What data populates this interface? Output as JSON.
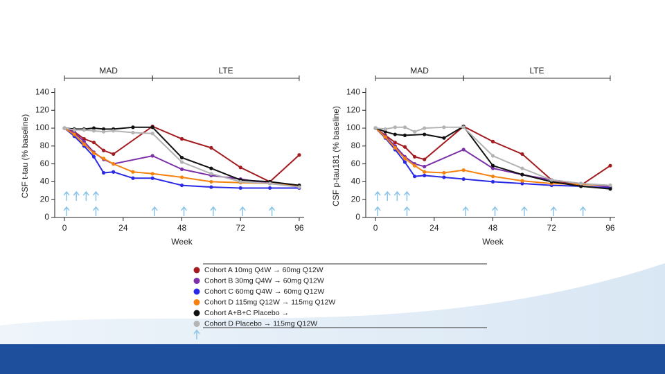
{
  "chart_data": [
    {
      "type": "line",
      "xlabel": "Week",
      "ylabel": "CSF t-tau (% baseline)",
      "xlim": [
        -4,
        98
      ],
      "ylim": [
        0,
        145
      ],
      "xticks": [
        0,
        24,
        48,
        72,
        96
      ],
      "yticks": [
        0,
        20,
        40,
        60,
        80,
        100,
        120,
        140
      ],
      "phases": [
        {
          "label": "MAD",
          "start": 0,
          "end": 36
        },
        {
          "label": "LTE",
          "start": 36,
          "end": 96
        }
      ],
      "series": [
        {
          "name": "Cohort A 10mg Q4W → 60mg Q12W",
          "color": "#a31a1f",
          "x": [
            0,
            4,
            8,
            12,
            16,
            20,
            36,
            48,
            60,
            72,
            84,
            96
          ],
          "values": [
            100,
            96,
            88,
            84,
            75,
            71,
            102,
            88,
            78,
            56,
            40,
            70
          ]
        },
        {
          "name": "Cohort B 30mg Q4W → 60mg Q12W",
          "color": "#7b2fa8",
          "x": [
            0,
            4,
            8,
            12,
            16,
            20,
            36,
            48,
            60,
            72,
            84,
            96
          ],
          "values": [
            100,
            95,
            85,
            73,
            65,
            60,
            69,
            54,
            47,
            43,
            38,
            35
          ]
        },
        {
          "name": "Cohort C 60mg Q4W → 60mg Q12W",
          "color": "#2a2ae6",
          "x": [
            0,
            4,
            8,
            12,
            16,
            20,
            28,
            36,
            48,
            60,
            72,
            84,
            96
          ],
          "values": [
            100,
            91,
            80,
            68,
            50,
            51,
            44,
            44,
            36,
            34,
            33,
            33,
            33
          ]
        },
        {
          "name": "Cohort D 115mg Q12W → 115mg Q12W",
          "color": "#f5820f",
          "x": [
            0,
            4,
            8,
            12,
            16,
            20,
            28,
            36,
            48,
            60,
            72,
            84,
            96
          ],
          "values": [
            100,
            93,
            82,
            72,
            66,
            60,
            51,
            49,
            45,
            40,
            39,
            38,
            35
          ]
        },
        {
          "name": "Cohort A+B+C Placebo →",
          "color": "#111111",
          "x": [
            0,
            4,
            8,
            12,
            16,
            20,
            28,
            36,
            48,
            60,
            72,
            84,
            96
          ],
          "values": [
            100,
            99,
            99,
            100,
            99,
            99,
            101,
            101,
            67,
            55,
            42,
            40,
            36
          ]
        },
        {
          "name": "Cohort D Placebo → 115mg Q12W",
          "color": "#b3b3b3",
          "x": [
            0,
            4,
            8,
            12,
            16,
            20,
            28,
            36,
            48,
            60,
            72,
            84,
            96
          ],
          "values": [
            100,
            98,
            98,
            97,
            96,
            97,
            95,
            94,
            62,
            49,
            40,
            38,
            34
          ]
        }
      ]
    },
    {
      "type": "line",
      "xlabel": "Week",
      "ylabel": "CSF p-tau181 (% baseline)",
      "xlim": [
        -4,
        98
      ],
      "ylim": [
        0,
        145
      ],
      "xticks": [
        0,
        24,
        48,
        72,
        96
      ],
      "yticks": [
        0,
        20,
        40,
        60,
        80,
        100,
        120,
        140
      ],
      "phases": [
        {
          "label": "MAD",
          "start": 0,
          "end": 36
        },
        {
          "label": "LTE",
          "start": 36,
          "end": 96
        }
      ],
      "series": [
        {
          "color": "#a31a1f",
          "x": [
            0,
            4,
            8,
            12,
            16,
            20,
            36,
            48,
            60,
            72,
            84,
            96
          ],
          "values": [
            100,
            92,
            84,
            79,
            68,
            65,
            102,
            85,
            71,
            42,
            36,
            58
          ]
        },
        {
          "color": "#7b2fa8",
          "x": [
            0,
            4,
            8,
            12,
            16,
            20,
            36,
            48,
            60,
            72,
            84,
            96
          ],
          "values": [
            100,
            91,
            80,
            68,
            60,
            57,
            76,
            55,
            48,
            42,
            38,
            34
          ]
        },
        {
          "color": "#2a2ae6",
          "x": [
            0,
            4,
            8,
            12,
            16,
            20,
            28,
            36,
            48,
            60,
            72,
            84,
            96
          ],
          "values": [
            100,
            89,
            76,
            62,
            46,
            47,
            45,
            43,
            40,
            38,
            36,
            35,
            33
          ]
        },
        {
          "color": "#f5820f",
          "x": [
            0,
            4,
            8,
            12,
            16,
            20,
            28,
            36,
            48,
            60,
            72,
            84,
            96
          ],
          "values": [
            100,
            90,
            78,
            66,
            58,
            51,
            50,
            53,
            46,
            41,
            38,
            37,
            36
          ]
        },
        {
          "color": "#111111",
          "x": [
            0,
            4,
            8,
            12,
            20,
            28,
            36,
            48,
            60,
            72,
            84,
            96
          ],
          "values": [
            100,
            96,
            93,
            92,
            93,
            89,
            102,
            58,
            48,
            40,
            35,
            32
          ]
        },
        {
          "color": "#b3b3b3",
          "x": [
            0,
            4,
            8,
            12,
            16,
            20,
            28,
            36,
            48,
            60,
            72,
            84,
            96
          ],
          "values": [
            100,
            99,
            101,
            101,
            96,
            100,
            101,
            101,
            69,
            55,
            42,
            38,
            36
          ]
        }
      ]
    }
  ]
}
